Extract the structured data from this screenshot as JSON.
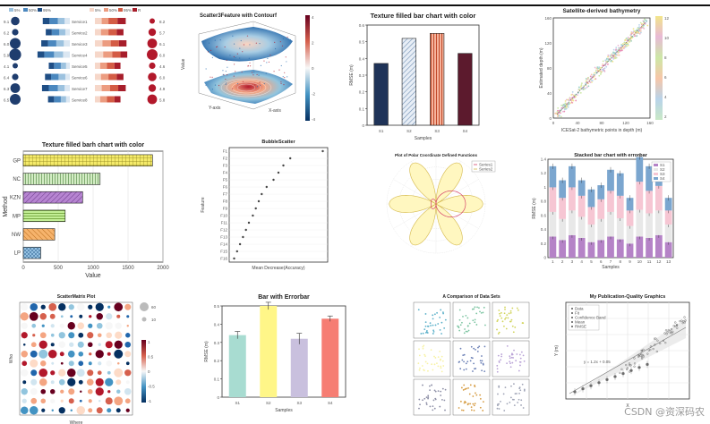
{
  "watermark": "CSDN @资深码农",
  "palette": {
    "navy": "#1f3358",
    "steel": "#b8c9dc",
    "salmon": "#e27c5d",
    "maroon": "#5c1a2d",
    "yellow": "#f2ea76",
    "green": "#c4e4b4",
    "purple": "#b684d1",
    "lime": "#b6ee8d",
    "orange": "#f4a55a",
    "sky": "#80b7e0",
    "mint": "#a8dcd1",
    "pale_yellow": "#fff688",
    "lavender": "#c9c0de",
    "coral": "#f67d73",
    "red_strong": "#b2182b",
    "blue_strong": "#2166ac"
  },
  "charts": [
    {
      "id": "p1",
      "type": "bar",
      "title": "",
      "categories": [
        "Service1",
        "Service2",
        "Service3",
        "Service4",
        "Service5",
        "Service6",
        "Service7",
        "Service8"
      ],
      "legend_left": [
        "5%",
        "50%",
        "95%"
      ],
      "legend_right": [
        "5%",
        "50%",
        "95%",
        "R"
      ],
      "left_stack": [
        [
          14,
          18,
          22,
          18
        ],
        [
          12,
          16,
          20,
          16
        ],
        [
          16,
          20,
          22,
          18
        ],
        [
          18,
          24,
          26,
          18
        ],
        [
          10,
          14,
          18,
          14
        ],
        [
          12,
          18,
          20,
          16
        ],
        [
          14,
          18,
          24,
          18
        ],
        [
          10,
          14,
          18,
          16
        ]
      ],
      "right_stack": [
        [
          18,
          18,
          24,
          22
        ],
        [
          16,
          20,
          22,
          18
        ],
        [
          20,
          22,
          22,
          20
        ],
        [
          22,
          24,
          22,
          18
        ],
        [
          14,
          18,
          20,
          16
        ],
        [
          16,
          20,
          22,
          18
        ],
        [
          18,
          22,
          22,
          20
        ],
        [
          14,
          18,
          20,
          16
        ]
      ],
      "bubble_left": [
        6,
        4,
        8,
        9,
        3,
        4,
        7,
        8
      ],
      "bubble_right": [
        3,
        5,
        7,
        8,
        4,
        6,
        5,
        7
      ],
      "left_labels": [
        "9.1",
        "6.2",
        "6.0",
        "5.9",
        "4.1",
        "6.4",
        "6.3",
        "6.5"
      ],
      "right_labels": [
        "8.2",
        "5.7",
        "6.1",
        "6.0",
        "4.6",
        "6.0",
        "4.9",
        "5.8"
      ]
    },
    {
      "id": "p2",
      "type": "surface",
      "title": "Scatter3Feature with Contourf",
      "xlabel": "Y-axis",
      "ylabel": "X-axis",
      "zlabel": "Value",
      "colorbar_ticks": [
        "4",
        "2",
        "0",
        "-2",
        "-4"
      ]
    },
    {
      "id": "p3",
      "type": "bar",
      "title": "Texture filled bar chart with color",
      "xlabel": "Samples",
      "ylabel": "RMSE (m)",
      "categories": [
        "S1",
        "S2",
        "S3",
        "S4"
      ],
      "values": [
        0.37,
        0.52,
        0.55,
        0.43
      ],
      "ylim": [
        0,
        0.6
      ],
      "yticks": [
        0,
        0.1,
        0.2,
        0.3,
        0.4,
        0.5,
        0.6
      ]
    },
    {
      "id": "p4",
      "type": "scatter",
      "title": "Satellite-derived bathymetry",
      "xlabel": "ICESat-2 bathymetric points in depth (m)",
      "ylabel": "Estimated depth (m)",
      "xlim": [
        0,
        160
      ],
      "ylim": [
        0,
        160
      ],
      "xticks": [
        0,
        40,
        80,
        120,
        160
      ],
      "yticks": [
        0,
        40,
        80,
        120,
        160
      ],
      "colorbar_ticks": [
        "12",
        "10",
        "8",
        "6",
        "4",
        "2"
      ]
    },
    {
      "id": "p5",
      "type": "bar",
      "orientation": "horizontal",
      "title": "Texture filled barh chart with color",
      "xlabel": "Value",
      "ylabel": "Method",
      "categories": [
        "GP",
        "NC",
        "KZN",
        "MP",
        "NW",
        "LP"
      ],
      "values": [
        1850,
        1100,
        850,
        600,
        450,
        250
      ],
      "xlim": [
        0,
        2000
      ],
      "xticks": [
        0,
        500,
        1000,
        1500,
        2000
      ]
    },
    {
      "id": "p6",
      "type": "scatter",
      "title": "BubbleScatter",
      "xlabel": "Mean Decrease(Accuracy)",
      "ylabel": "Feature",
      "categories": [
        "F1",
        "F2",
        "F3",
        "F4",
        "F5",
        "F6",
        "F7",
        "F8",
        "F9",
        "F10",
        "F11",
        "F12",
        "F13",
        "F14",
        "F15",
        "F16"
      ],
      "values": [
        0.95,
        0.62,
        0.55,
        0.5,
        0.45,
        0.38,
        0.33,
        0.3,
        0.27,
        0.24,
        0.2,
        0.17,
        0.14,
        0.11,
        0.08,
        0.05
      ],
      "xlim": [
        0,
        1
      ]
    },
    {
      "id": "p7",
      "type": "line",
      "title": "Plot of Polar Coordinate Defined Functions",
      "legend": [
        "Series1",
        "Series2"
      ],
      "rings": [
        0.25,
        0.5,
        0.75,
        1.0
      ]
    },
    {
      "id": "p8",
      "type": "bar",
      "title": "Stacked bar chart with errorbar",
      "xlabel": "Samples",
      "ylabel": "RMSE (m)",
      "categories": [
        "1",
        "2",
        "3",
        "4",
        "5",
        "6",
        "7",
        "8",
        "9",
        "10",
        "11",
        "12",
        "13"
      ],
      "series": [
        {
          "name": "S1",
          "values": [
            0.3,
            0.25,
            0.32,
            0.28,
            0.22,
            0.25,
            0.3,
            0.26,
            0.2,
            0.3,
            0.28,
            0.32,
            0.22
          ]
        },
        {
          "name": "S2",
          "values": [
            0.35,
            0.3,
            0.35,
            0.3,
            0.25,
            0.3,
            0.35,
            0.3,
            0.25,
            0.38,
            0.35,
            0.35,
            0.25
          ]
        },
        {
          "name": "S3",
          "values": [
            0.35,
            0.3,
            0.33,
            0.3,
            0.25,
            0.28,
            0.3,
            0.32,
            0.22,
            0.4,
            0.32,
            0.35,
            0.2
          ]
        },
        {
          "name": "S4",
          "values": [
            0.3,
            0.25,
            0.3,
            0.22,
            0.25,
            0.2,
            0.3,
            0.32,
            0.18,
            0.35,
            0.35,
            0.28,
            0.18
          ]
        }
      ],
      "ylim": [
        0,
        1.4
      ],
      "yticks": [
        0,
        0.2,
        0.4,
        0.6,
        0.8,
        1.0,
        1.2,
        1.4
      ]
    },
    {
      "id": "p9",
      "type": "heatmap",
      "title": "ScatterMatrix Plot",
      "xlabel": "Where",
      "ylabel": "Who",
      "colorbar_ticks": [
        "1",
        "0.5",
        "0",
        "-0.5",
        "-1"
      ],
      "size_legend": [
        "10",
        "60"
      ]
    },
    {
      "id": "p10",
      "type": "bar",
      "title": "Bar with Errorbar",
      "xlabel": "Samples",
      "ylabel": "RMSE (m)",
      "categories": [
        "S1",
        "S2",
        "S3",
        "S4"
      ],
      "values": [
        0.34,
        0.5,
        0.32,
        0.43
      ],
      "errors": [
        0.02,
        0.02,
        0.03,
        0.015
      ],
      "ylim": [
        0,
        0.5
      ],
      "yticks": [
        0,
        0.1,
        0.2,
        0.3,
        0.4,
        0.5
      ]
    },
    {
      "id": "p11",
      "type": "scatter",
      "title": "A Comparison of Data Sets"
    },
    {
      "id": "p12",
      "type": "scatter",
      "title": "My Publication-Quality Graphics",
      "xlabel": "X",
      "ylabel": "Y (m)",
      "legend": [
        "Data",
        "Fit",
        "Confidence Band",
        "Mean",
        "RMSE"
      ],
      "annotation": "y = 1.2x + 0.05"
    }
  ]
}
